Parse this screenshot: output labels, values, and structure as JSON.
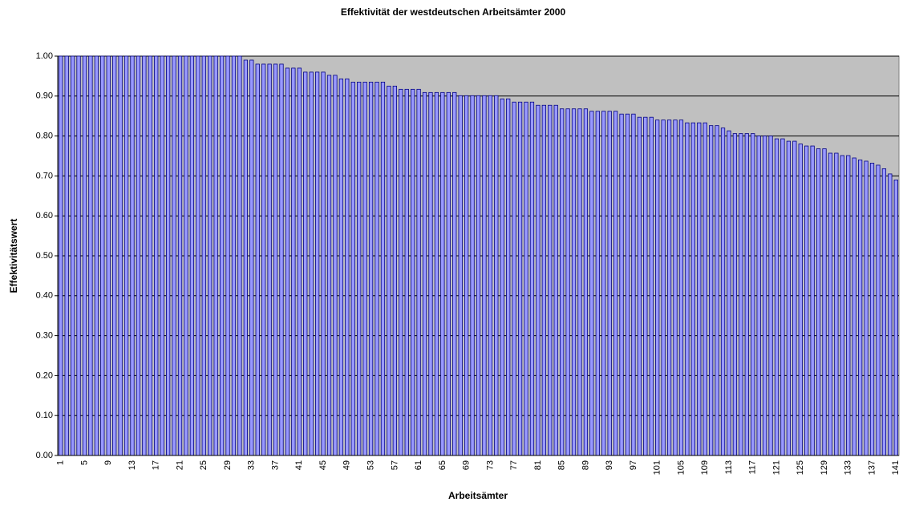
{
  "chart_data": {
    "type": "bar",
    "title": "Effektivität der westdeutschen Arbeitsämter 2000",
    "x_label": "Arbeitsämter",
    "y_label": "Effektivitätswert",
    "categories": [
      "1",
      null,
      null,
      null,
      "5",
      null,
      null,
      null,
      "9",
      null,
      null,
      null,
      "13",
      null,
      null,
      null,
      "17",
      null,
      null,
      null,
      "21",
      null,
      null,
      null,
      "25",
      null,
      null,
      null,
      "29",
      null,
      null,
      null,
      "33",
      null,
      null,
      null,
      "37",
      null,
      null,
      null,
      "41",
      null,
      null,
      null,
      "45",
      null,
      null,
      null,
      "49",
      null,
      null,
      null,
      "53",
      null,
      null,
      null,
      "57",
      null,
      null,
      null,
      "61",
      null,
      null,
      null,
      "65",
      null,
      null,
      null,
      "69",
      null,
      null,
      null,
      "73",
      null,
      null,
      null,
      "77",
      null,
      null,
      null,
      "81",
      null,
      null,
      null,
      "85",
      null,
      null,
      null,
      "89",
      null,
      null,
      null,
      "93",
      null,
      null,
      null,
      "97",
      null,
      null,
      null,
      "101",
      null,
      null,
      null,
      "105",
      null,
      null,
      null,
      "109",
      null,
      null,
      null,
      "113",
      null,
      null,
      null,
      "117",
      null,
      null,
      null,
      "121",
      null,
      null,
      null,
      "125",
      null,
      null,
      null,
      "129",
      null,
      null,
      null,
      "133",
      null,
      null,
      null,
      "137",
      null,
      null,
      null,
      "141"
    ],
    "values": [
      1,
      1,
      1,
      1,
      1,
      1,
      1,
      1,
      1,
      1,
      1,
      1,
      1,
      1,
      1,
      1,
      1,
      1,
      1,
      1,
      1,
      1,
      1,
      1,
      1,
      1,
      1,
      1,
      1,
      1,
      1,
      0.99,
      0.99,
      0.98,
      0.98,
      0.98,
      0.98,
      0.98,
      0.97,
      0.97,
      0.97,
      0.96,
      0.96,
      0.96,
      0.96,
      0.952,
      0.952,
      0.943,
      0.943,
      0.935,
      0.935,
      0.935,
      0.935,
      0.935,
      0.935,
      0.925,
      0.925,
      0.917,
      0.917,
      0.917,
      0.917,
      0.909,
      0.909,
      0.909,
      0.909,
      0.909,
      0.909,
      0.901,
      0.901,
      0.901,
      0.901,
      0.901,
      0.901,
      0.901,
      0.893,
      0.893,
      0.885,
      0.885,
      0.885,
      0.885,
      0.877,
      0.877,
      0.877,
      0.877,
      0.868,
      0.868,
      0.868,
      0.868,
      0.868,
      0.862,
      0.862,
      0.862,
      0.862,
      0.862,
      0.855,
      0.855,
      0.855,
      0.847,
      0.847,
      0.847,
      0.84,
      0.84,
      0.84,
      0.84,
      0.84,
      0.833,
      0.833,
      0.833,
      0.833,
      0.826,
      0.826,
      0.82,
      0.813,
      0.806,
      0.806,
      0.806,
      0.806,
      0.8,
      0.8,
      0.8,
      0.793,
      0.793,
      0.787,
      0.787,
      0.78,
      0.775,
      0.775,
      0.768,
      0.768,
      0.757,
      0.757,
      0.751,
      0.751,
      0.745,
      0.74,
      0.737,
      0.732,
      0.727,
      0.718,
      0.705,
      0.69
    ],
    "color": "#9999ff",
    "edge_color": "#000080",
    "background": "#c0c0c0",
    "ylim": [
      0,
      1
    ],
    "yticks": [
      {
        "value": 0,
        "label": "0.00"
      },
      {
        "value": 0.1,
        "label": "0.10"
      },
      {
        "value": 0.2,
        "label": "0.20"
      },
      {
        "value": 0.3,
        "label": "0.30"
      },
      {
        "value": 0.4,
        "label": "0.40"
      },
      {
        "value": 0.5,
        "label": "0.50"
      },
      {
        "value": 0.6,
        "label": "0.60"
      },
      {
        "value": 0.7,
        "label": "0.70"
      },
      {
        "value": 0.8,
        "label": "0.80"
      },
      {
        "value": 0.9,
        "label": "0.90"
      },
      {
        "value": 1,
        "label": "1.00"
      }
    ],
    "grid": true
  }
}
